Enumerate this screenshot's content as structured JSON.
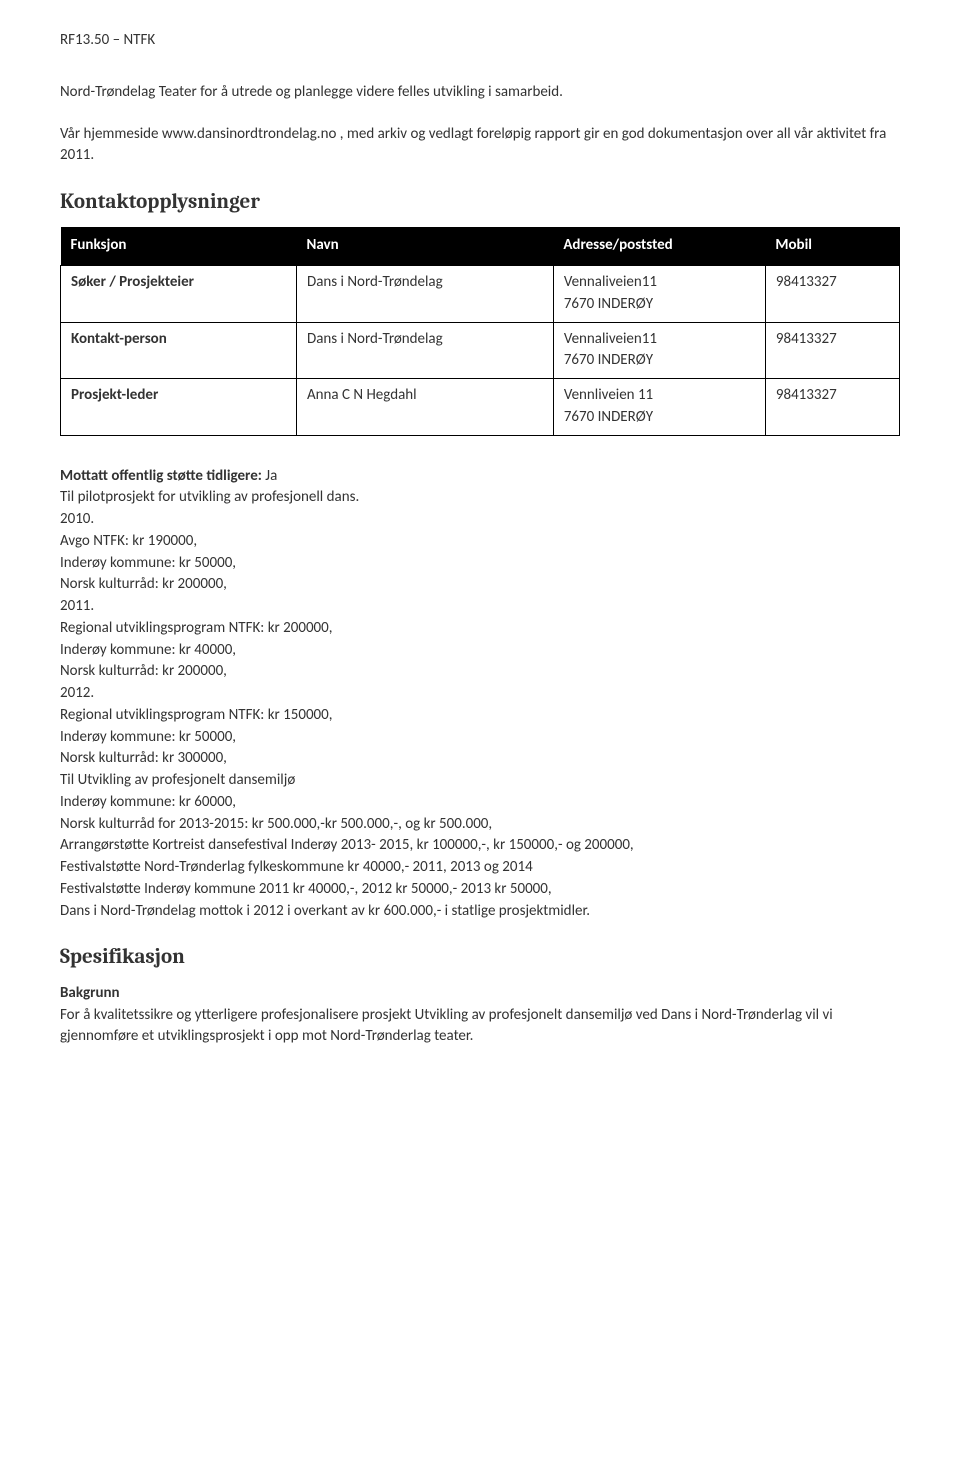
{
  "pageHeader": "RF13.50 – NTFK",
  "intro": {
    "line1": "Nord-Trøndelag Teater for å utrede og planlegge videre felles utvikling i samarbeid.",
    "line2": "Vår hjemmeside www.dansinordtrondelag.no , med arkiv og vedlagt foreløpig rapport gir en god dokumentasjon over all vår aktivitet fra 2011."
  },
  "contactSection": {
    "heading": "Kontaktopplysninger",
    "headers": {
      "funksjon": "Funksjon",
      "navn": "Navn",
      "adresse": "Adresse/poststed",
      "mobil": "Mobil"
    },
    "rows": [
      {
        "funksjon": "Søker / Prosjekteier",
        "navn": "Dans i Nord-Trøndelag",
        "adresseLine1": "Vennaliveien11",
        "adresseLine2": "7670 INDERØY",
        "mobil": "98413327"
      },
      {
        "funksjon": "Kontakt-person",
        "navn": "Dans i Nord-Trøndelag",
        "adresseLine1": "Vennaliveien11",
        "adresseLine2": "7670  INDERØY",
        "mobil": "98413327"
      },
      {
        "funksjon": "Prosjekt-leder",
        "navn": "Anna C N Hegdahl",
        "adresseLine1": "Vennliveien 11",
        "adresseLine2": "7670 INDERØY",
        "mobil": "98413327"
      }
    ]
  },
  "support": {
    "labelBold": "Mottatt offentlig støtte tidligere: ",
    "labelValue": "Ja",
    "line1": "Til pilotprosjekt for utvikling av profesjonell dans.",
    "year2010": "2010.",
    "y2010a": "Avgo NTFK: kr 190000,",
    "y2010b": "Inderøy kommune: kr 50000,",
    "y2010c": "Norsk kulturråd: kr 200000,",
    "year2011": "2011.",
    "y2011a": "Regional utviklingsprogram NTFK: kr 200000,",
    "y2011b": "Inderøy kommune: kr 40000,",
    "y2011c": "Norsk kulturråd: kr 200000,",
    "year2012": "2012.",
    "y2012a": "Regional utviklingsprogram NTFK: kr 150000,",
    "y2012b": "Inderøy kommune: kr 50000,",
    "y2012c": "Norsk kulturråd: kr 300000,",
    "devLine1": "Til Utvikling av profesjonelt dansemiljø",
    "devLine2": "Inderøy kommune: kr 60000,",
    "devLine3": "Norsk kulturråd for 2013-2015: kr 500.000,-kr 500.000,-, og kr 500.000,",
    "arrangor": "Arrangørstøtte Kortreist dansefestival Inderøy 2013- 2015, kr 100000,-, kr 150000,- og 200000,",
    "fest1": "Festivalstøtte Nord-Trønderlag fylkeskommune kr 40000,- 2011, 2013 og 2014",
    "fest2": "Festivalstøtte Inderøy kommune 2011 kr 40000,-, 2012 kr 50000,- 2013 kr 50000,",
    "received": "Dans i Nord-Trøndelag mottok i 2012 i overkant av kr 600.000,- i statlige prosjektmidler."
  },
  "spec": {
    "heading": "Spesifikasjon",
    "subheading": "Bakgrunn",
    "para": "For å kvalitetssikre og ytterligere profesjonalisere prosjekt Utvikling av profesjonelt dansemiljø ved Dans i Nord-Trønderlag vil vi gjennomføre et utviklingsprosjekt i opp mot Nord-Trønderlag teater."
  }
}
